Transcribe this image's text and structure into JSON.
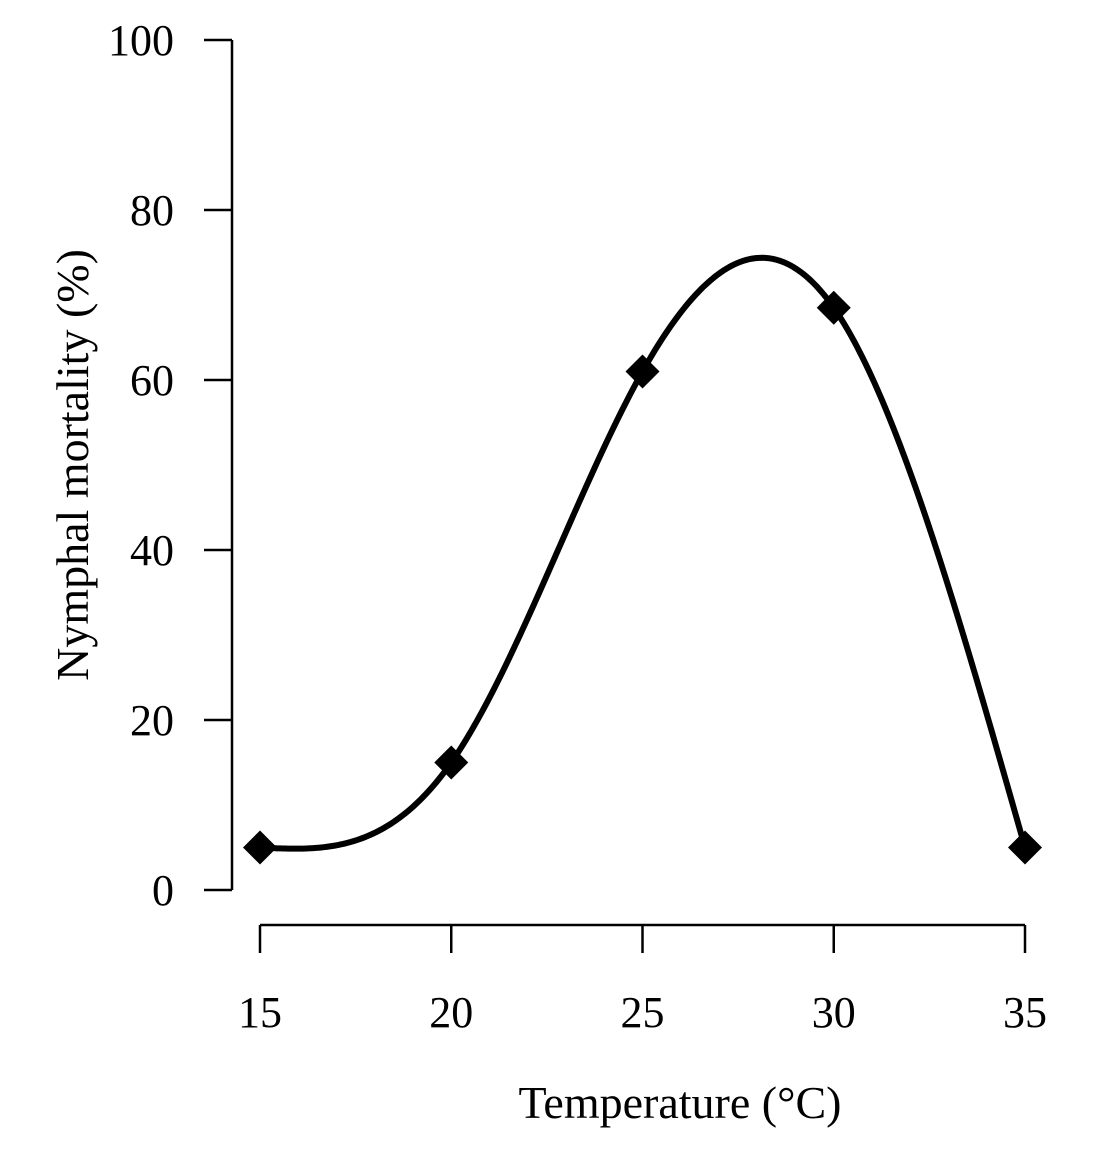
{
  "chart_data": {
    "type": "scatter",
    "title": "",
    "xlabel": "Temperature (°C)",
    "ylabel": "Nymphal mortality (%)",
    "x": [
      15,
      20,
      25,
      30,
      35
    ],
    "series": [
      {
        "name": "Nymphal mortality",
        "values": [
          5,
          15,
          61,
          68.5,
          5
        ],
        "marker": "diamond",
        "fit": "smooth curve"
      }
    ],
    "xlim": [
      15,
      35
    ],
    "ylim": [
      0,
      100
    ],
    "xticks": [
      "15",
      "20",
      "25",
      "30",
      "35"
    ],
    "yticks": [
      "0",
      "20",
      "40",
      "60",
      "80",
      "100"
    ],
    "grid": false,
    "legend": "none",
    "colors": {
      "series": "#000000",
      "axis": "#000000",
      "background": "#ffffff"
    }
  }
}
